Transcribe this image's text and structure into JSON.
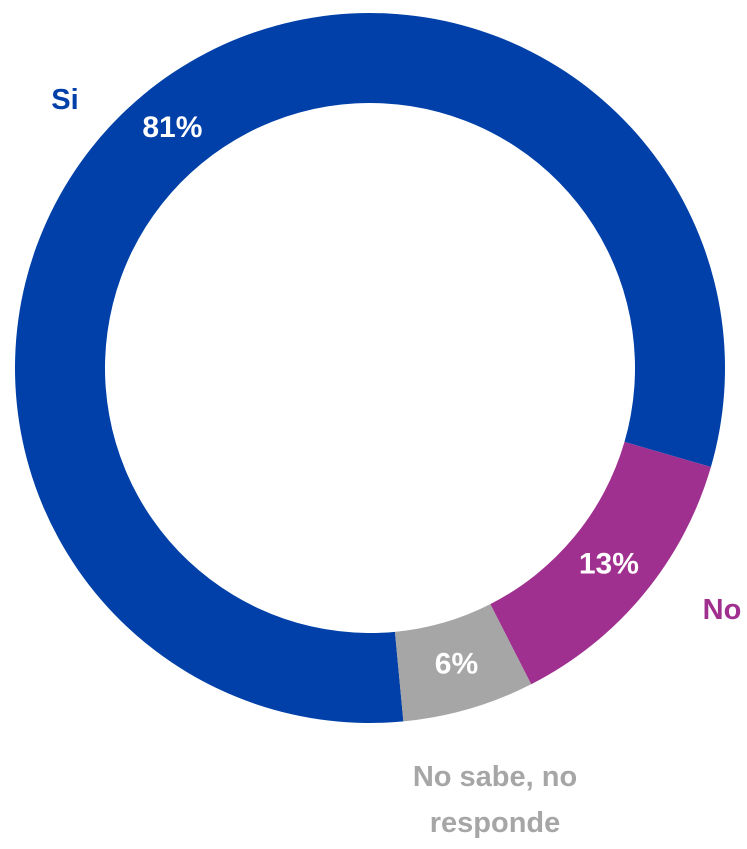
{
  "chart_data": {
    "type": "donut",
    "categories": [
      "Si",
      "No",
      "No sabe, no responde"
    ],
    "values": [
      81,
      13,
      6
    ],
    "value_labels": [
      "81%",
      "13%",
      "6%"
    ],
    "colors": [
      "#0040a8",
      "#a03090",
      "#a6a6a6"
    ]
  }
}
